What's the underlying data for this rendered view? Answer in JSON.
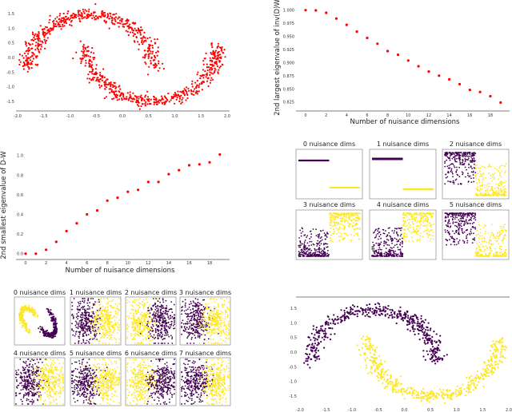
{
  "colors": {
    "red": "#ff0000",
    "purple": "#440154",
    "yellow": "#fde725",
    "axis": "#555555"
  },
  "chart_data": [
    {
      "id": "moons-red",
      "type": "scatter",
      "dataset": "two moons",
      "color": "#ff0000",
      "xlim": [
        -2.0,
        2.0
      ],
      "ylim": [
        -1.7,
        1.7
      ],
      "xticks": [
        "-2.0",
        "-1.5",
        "-1.0",
        "-0.5",
        "0.0",
        "0.5",
        "1.0",
        "1.5",
        "2.0"
      ],
      "yticks": [
        "1.5",
        "1.0",
        "0.5",
        "0.0",
        "-0.5",
        "-1.0",
        "-1.5"
      ]
    },
    {
      "id": "largest-eig",
      "type": "scatter",
      "xlabel": "Number of nuisance dimensions",
      "ylabel": "2nd largest eigenvalue of inv(D)W",
      "color": "#ff0000",
      "xlim": [
        -0.8,
        19.8
      ],
      "ylim": [
        0.818,
        1.004
      ],
      "xticks": [
        "0",
        "2",
        "4",
        "6",
        "8",
        "10",
        "12",
        "14",
        "16",
        "18"
      ],
      "yticks": [
        "1.000",
        "0.975",
        "0.950",
        "0.925",
        "0.900",
        "0.875",
        "0.850",
        "0.825"
      ],
      "x": [
        0,
        1,
        2,
        3,
        4,
        5,
        6,
        7,
        8,
        9,
        10,
        11,
        12,
        13,
        14,
        15,
        16,
        17,
        18,
        19
      ],
      "y": [
        1.0,
        0.9995,
        0.995,
        0.984,
        0.972,
        0.959,
        0.947,
        0.936,
        0.922,
        0.915,
        0.904,
        0.893,
        0.883,
        0.875,
        0.868,
        0.859,
        0.848,
        0.844,
        0.836,
        0.824
      ]
    },
    {
      "id": "smallest-eig",
      "type": "scatter",
      "xlabel": "Number of nuisance dimensions",
      "ylabel": "2nd smallest eigenvalue of D-W",
      "color": "#ff0000",
      "xlim": [
        -0.8,
        19.8
      ],
      "ylim": [
        -0.05,
        1.05
      ],
      "xticks": [
        "0",
        "2",
        "4",
        "6",
        "8",
        "10",
        "12",
        "14",
        "16",
        "18"
      ],
      "yticks": [
        "1.0",
        "0.8",
        "0.6",
        "0.4",
        "0.2",
        "0.0"
      ],
      "x": [
        0,
        1,
        2,
        3,
        4,
        5,
        6,
        7,
        8,
        9,
        10,
        11,
        12,
        13,
        14,
        15,
        16,
        17,
        18,
        19
      ],
      "y": [
        0,
        0,
        0.04,
        0.12,
        0.23,
        0.31,
        0.4,
        0.44,
        0.54,
        0.57,
        0.63,
        0.65,
        0.73,
        0.73,
        0.81,
        0.85,
        0.9,
        0.91,
        0.93,
        1.01
      ]
    },
    {
      "id": "embedding-grid",
      "type": "scatter",
      "colors": [
        "#440154",
        "#fde725"
      ],
      "panels": [
        "0 nuisance dims",
        "1 nuisance dims",
        "2 nuisance dims",
        "3 nuisance dims",
        "4 nuisance dims",
        "5 nuisance dims"
      ]
    },
    {
      "id": "projection-grid",
      "type": "scatter",
      "colors": [
        "#440154",
        "#fde725"
      ],
      "panels": [
        "0 nuisance dims",
        "1 nuisance dims",
        "2 nuisance dims",
        "3 nuisance dims",
        "4 nuisance dims",
        "5 nuisance dims",
        "6 nuisance dims",
        "7 nuisance dims"
      ]
    },
    {
      "id": "moons-labeled",
      "type": "scatter",
      "dataset": "two moons",
      "colors": [
        "#440154",
        "#fde725"
      ],
      "xlim": [
        -2.0,
        2.0
      ],
      "ylim": [
        -1.7,
        1.7
      ],
      "xticks": [
        "-2.0",
        "-1.5",
        "-1.0",
        "-0.5",
        "0.0",
        "0.5",
        "1.0",
        "1.5",
        "2.0"
      ],
      "yticks": [
        "1.5",
        "1.0",
        "0.5",
        "0.0",
        "-0.5",
        "-1.0",
        "-1.5"
      ]
    }
  ]
}
